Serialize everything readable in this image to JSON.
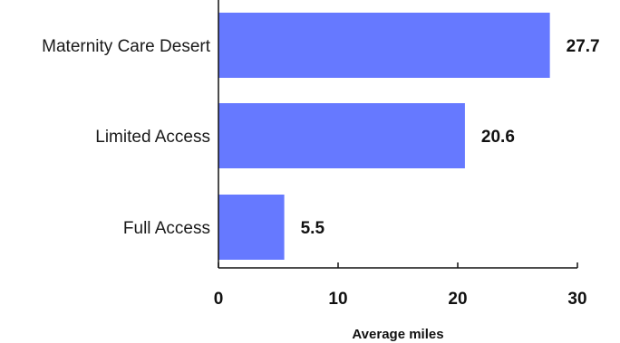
{
  "chart_data": {
    "type": "bar",
    "orientation": "horizontal",
    "categories": [
      "Maternity Care Desert",
      "Limited Access",
      "Full Access"
    ],
    "values": [
      27.7,
      20.6,
      5.5
    ],
    "value_labels": [
      "27.7",
      "20.6",
      "5.5"
    ],
    "xlabel": "Average miles",
    "xlim": [
      0,
      30
    ],
    "xticks": [
      "0",
      "10",
      "20",
      "30"
    ],
    "grid": false,
    "bar_color": "#6679ff",
    "axis_color": "#111111"
  }
}
